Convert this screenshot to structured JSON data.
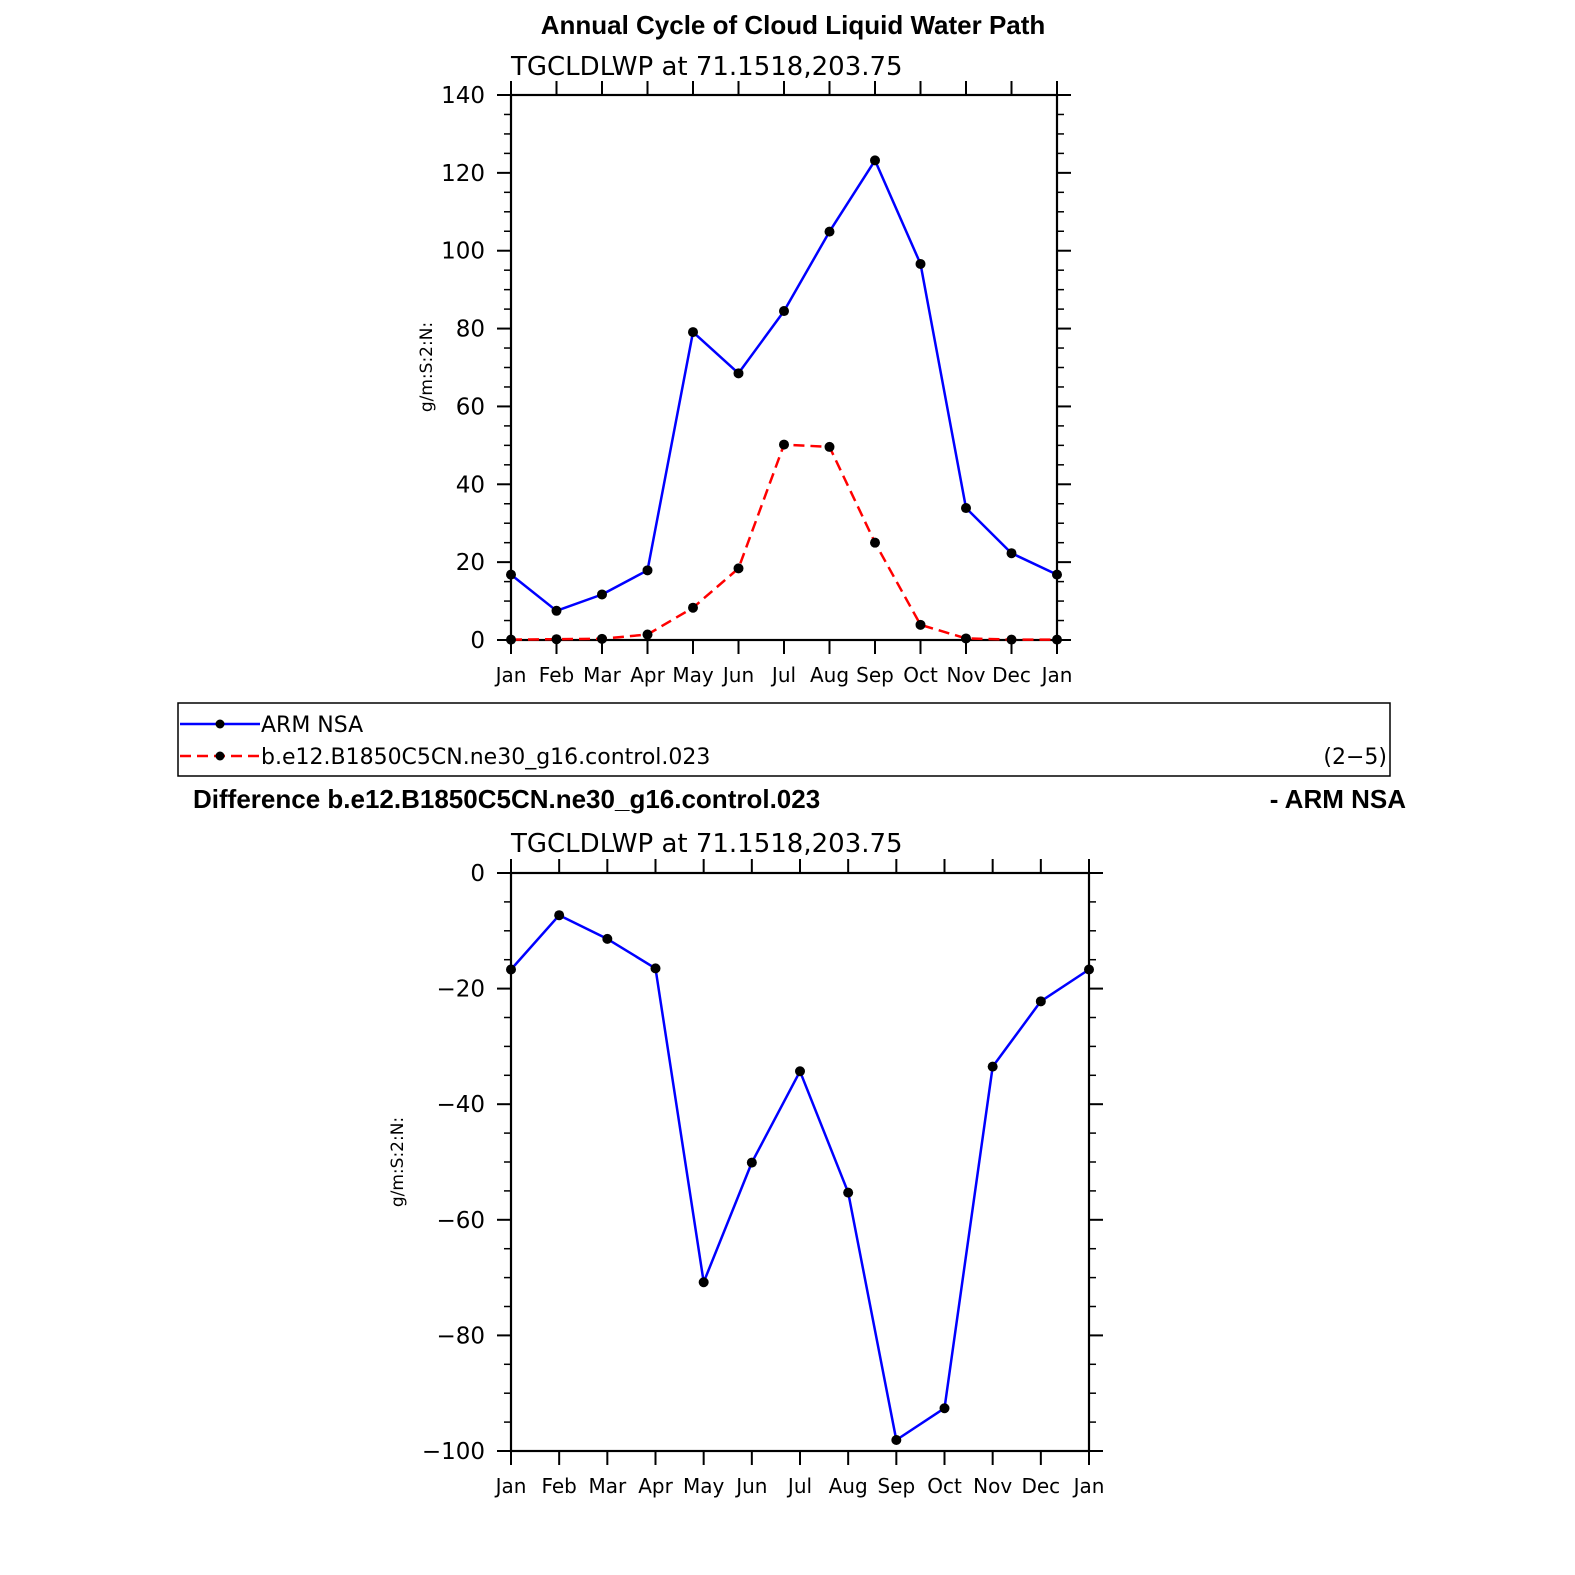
{
  "chart_data": [
    {
      "type": "line",
      "title": "Annual Cycle of Cloud Liquid Water Path",
      "subtitle": "TGCLDLWP at 71.1518,203.75",
      "xlabel": "",
      "ylabel": "g/m:S:2:N:",
      "categories": [
        "Jan",
        "Feb",
        "Mar",
        "Apr",
        "May",
        "Jun",
        "Jul",
        "Aug",
        "Sep",
        "Oct",
        "Nov",
        "Dec",
        "Jan"
      ],
      "ylim": [
        0,
        140
      ],
      "yticks": [
        "0",
        "20",
        "40",
        "60",
        "80",
        "100",
        "120",
        "140"
      ],
      "series": [
        {
          "name": "ARM NSA",
          "color": "#0000ff",
          "dash": "solid",
          "values": [
            16.8,
            7.5,
            11.7,
            17.9,
            79.1,
            68.5,
            84.5,
            104.9,
            123.2,
            96.6,
            33.9,
            22.3,
            16.8
          ]
        },
        {
          "name": "b.e12.B1850C5CN.ne30_g16.control.023",
          "color": "#ff0000",
          "dash": "dashed",
          "values": [
            0.1,
            0.2,
            0.3,
            1.4,
            8.3,
            18.4,
            50.2,
            49.6,
            25.0,
            3.9,
            0.4,
            0.1,
            0.1
          ]
        }
      ]
    },
    {
      "type": "line",
      "title_left": "Difference b.e12.B1850C5CN.ne30_g16.control.023",
      "title_right": "- ARM NSA",
      "subtitle": "TGCLDLWP at 71.1518,203.75",
      "xlabel": "",
      "ylabel": "g/m:S:2:N:",
      "categories": [
        "Jan",
        "Feb",
        "Mar",
        "Apr",
        "May",
        "Jun",
        "Jul",
        "Aug",
        "Sep",
        "Oct",
        "Nov",
        "Dec",
        "Jan"
      ],
      "ylim": [
        -100,
        0
      ],
      "yticks": [
        "0",
        "−20",
        "−40",
        "−60",
        "−80",
        "−100"
      ],
      "series": [
        {
          "name": "",
          "color": "#0000ff",
          "dash": "solid",
          "values": [
            -16.7,
            -7.3,
            -11.4,
            -16.5,
            -70.8,
            -50.1,
            -34.3,
            -55.3,
            -98.1,
            -92.6,
            -33.5,
            -22.2,
            -16.7
          ]
        }
      ]
    }
  ],
  "legend": {
    "entries": [
      {
        "label": "ARM NSA",
        "color": "#0000ff",
        "dash": "solid"
      },
      {
        "label": "b.e12.B1850C5CN.ne30_g16.control.023",
        "color": "#ff0000",
        "dash": "dashed"
      }
    ],
    "note": "(2−5)"
  }
}
